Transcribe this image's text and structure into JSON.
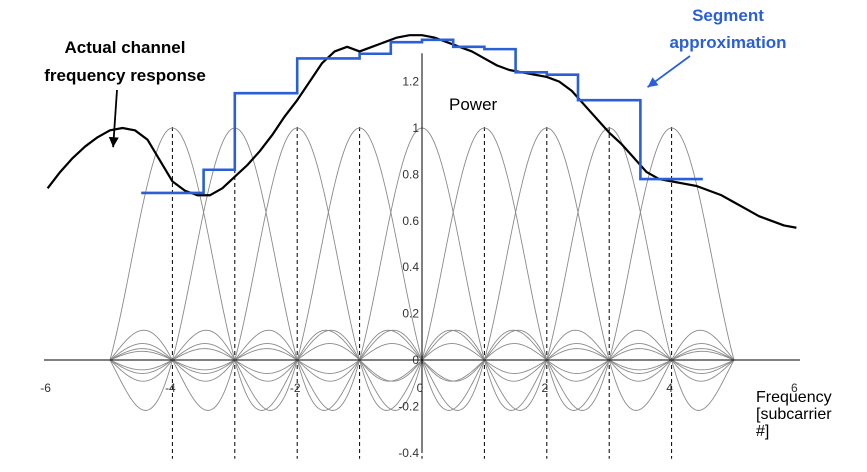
{
  "chart_data": {
    "type": "line",
    "title": "",
    "ylabel": "Power",
    "xlabel_lines": [
      "Frequency",
      "[subcarrier",
      "#]"
    ],
    "xlim": [
      -6,
      6
    ],
    "ylim": [
      -0.4,
      1.4
    ],
    "x_ticks": [
      "-6",
      "-4",
      "-2",
      "0",
      "2",
      "4",
      "6"
    ],
    "y_ticks": [
      "-0.4",
      "-0.2",
      "0",
      "0.2",
      "0.4",
      "0.6",
      "0.8",
      "1",
      "1.2"
    ],
    "subcarriers": {
      "centers": [
        -4,
        -3,
        -2,
        -1,
        0,
        1,
        2,
        3,
        4
      ],
      "peak": 1,
      "shape": "sinc"
    },
    "series": [
      {
        "name": "Actual channel frequency response",
        "x": [
          -6.0,
          -5.8,
          -5.6,
          -5.4,
          -5.2,
          -5.0,
          -4.8,
          -4.6,
          -4.4,
          -4.2,
          -4.0,
          -3.8,
          -3.6,
          -3.4,
          -3.2,
          -3.0,
          -2.8,
          -2.6,
          -2.4,
          -2.2,
          -2.0,
          -1.8,
          -1.6,
          -1.4,
          -1.2,
          -1.0,
          -0.8,
          -0.6,
          -0.4,
          -0.2,
          0.0,
          0.2,
          0.4,
          0.6,
          0.8,
          1.0,
          1.2,
          1.4,
          1.6,
          1.8,
          2.0,
          2.2,
          2.4,
          2.6,
          2.8,
          3.0,
          3.2,
          3.4,
          3.6,
          3.8,
          4.0,
          4.2,
          4.4,
          4.6,
          4.8,
          5.0,
          5.2,
          5.4,
          5.6,
          5.8,
          6.0
        ],
        "y": [
          0.74,
          0.81,
          0.87,
          0.92,
          0.96,
          0.99,
          1.0,
          0.99,
          0.95,
          0.86,
          0.77,
          0.73,
          0.71,
          0.71,
          0.74,
          0.79,
          0.84,
          0.9,
          0.97,
          1.05,
          1.12,
          1.2,
          1.28,
          1.33,
          1.35,
          1.33,
          1.35,
          1.37,
          1.39,
          1.4,
          1.4,
          1.39,
          1.37,
          1.35,
          1.33,
          1.3,
          1.27,
          1.25,
          1.24,
          1.23,
          1.22,
          1.2,
          1.16,
          1.1,
          1.04,
          0.98,
          0.93,
          0.87,
          0.81,
          0.78,
          0.77,
          0.76,
          0.75,
          0.73,
          0.71,
          0.68,
          0.65,
          0.62,
          0.6,
          0.58,
          0.57
        ],
        "color": "#000000"
      },
      {
        "name": "Segment approximation",
        "type": "step",
        "x_edges": [
          -4.5,
          -3.5,
          -3.0,
          -2.0,
          -1.0,
          -0.5,
          0.0,
          0.5,
          1.0,
          1.5,
          2.0,
          2.5,
          3.0,
          3.5,
          4.0,
          4.5
        ],
        "y": [
          0.72,
          0.82,
          1.15,
          1.3,
          1.32,
          1.37,
          1.38,
          1.35,
          1.34,
          1.24,
          1.23,
          1.12,
          1.12,
          0.78,
          0.78
        ],
        "color": "#2a5fd8"
      }
    ],
    "annotations": [
      {
        "lines": [
          "Actual channel",
          "frequency response"
        ],
        "color": "#000000",
        "points_to": [
          -4.95,
          0.9
        ]
      },
      {
        "lines": [
          "Segment",
          "approximation"
        ],
        "color": "#2a5fd8",
        "points_to": [
          3.55,
          1.15
        ]
      }
    ]
  }
}
